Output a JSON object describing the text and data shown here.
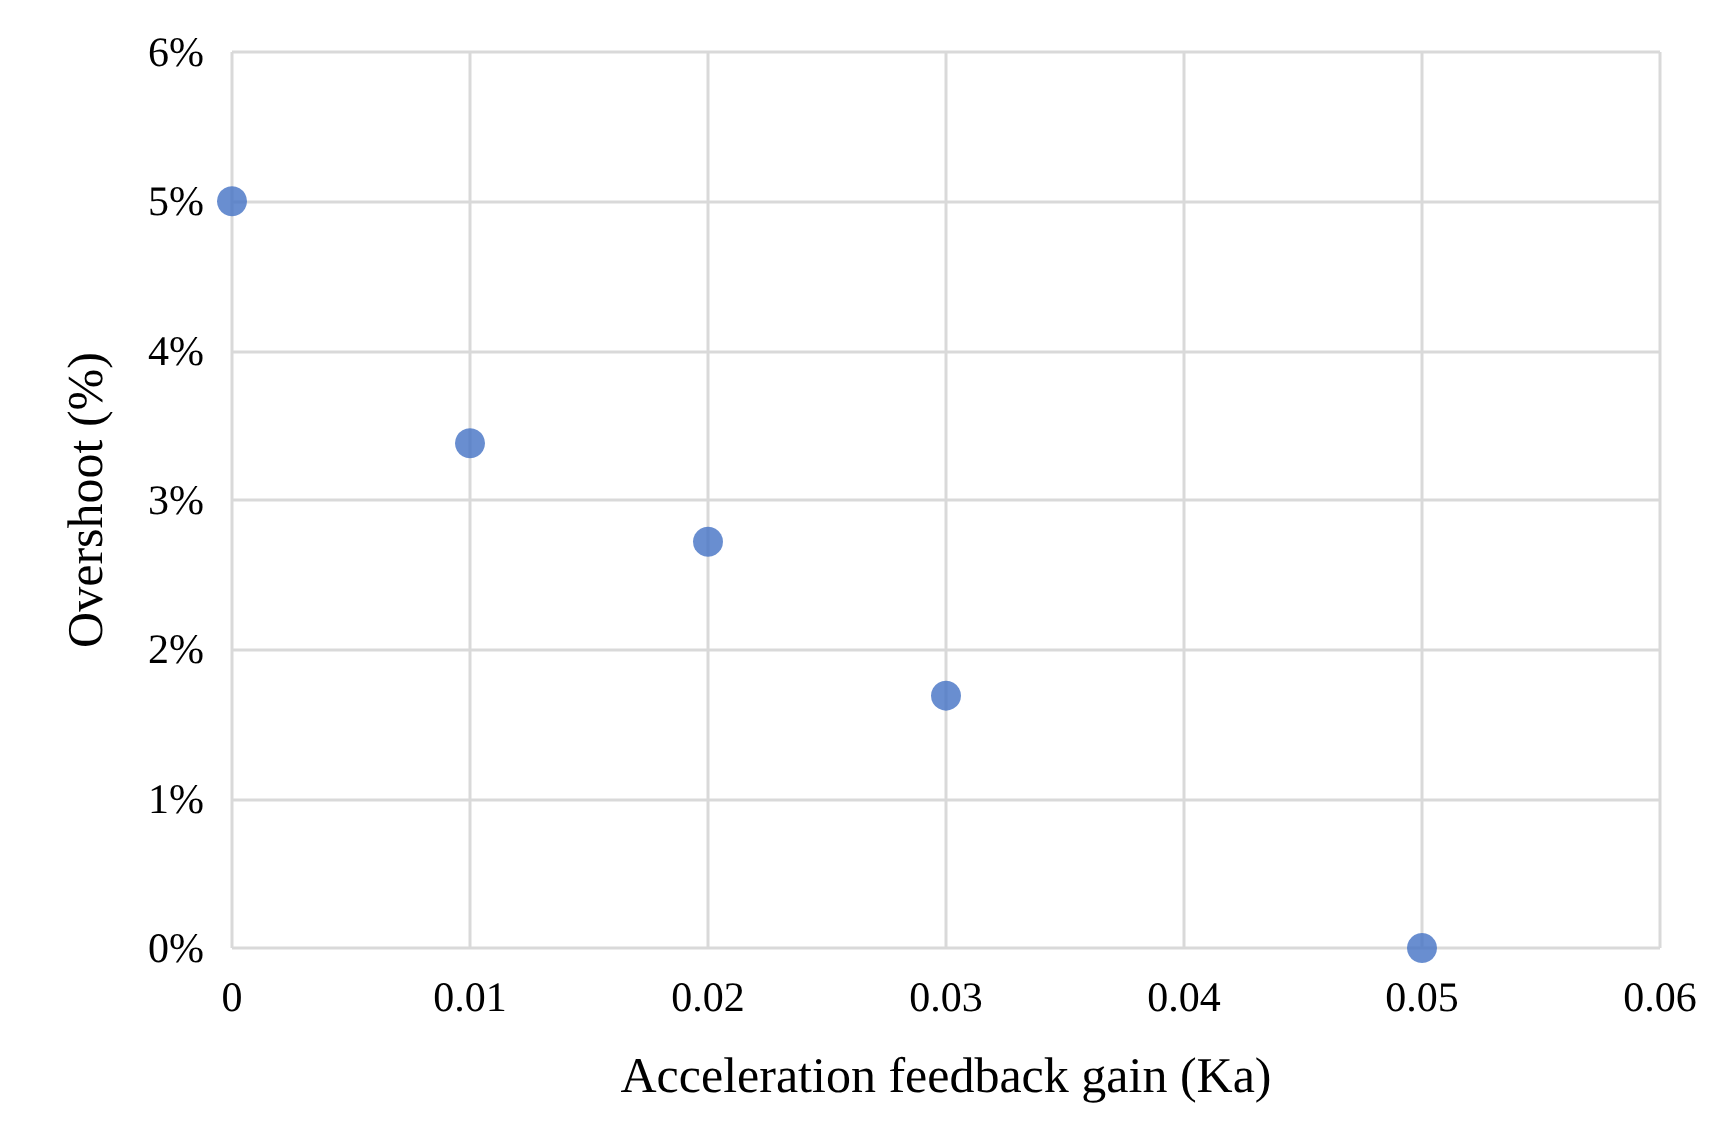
{
  "chart_data": {
    "type": "scatter",
    "xlabel": "Acceleration feedback gain (Ka)",
    "ylabel": "Overshoot (%)",
    "x": [
      0,
      0.01,
      0.02,
      0.03,
      0.05
    ],
    "series": [
      {
        "color": "#4472c4",
        "values": [
          5,
          3.38,
          2.72,
          1.69,
          0
        ]
      }
    ],
    "xlim": [
      0,
      0.06
    ],
    "xticks": [
      0,
      0.01,
      0.02,
      0.03,
      0.04,
      0.05,
      0.06
    ],
    "ylim": [
      0,
      6
    ],
    "yticks": [
      {
        "value": 0,
        "label": "0%"
      },
      {
        "value": 1,
        "label": "1%"
      },
      {
        "value": 2,
        "label": "2%"
      },
      {
        "value": 3,
        "label": "3%"
      },
      {
        "value": 4,
        "label": "4%"
      },
      {
        "value": 5,
        "label": "5%"
      },
      {
        "value": 6,
        "label": "6%"
      }
    ],
    "grid": true,
    "marker": "circle"
  }
}
